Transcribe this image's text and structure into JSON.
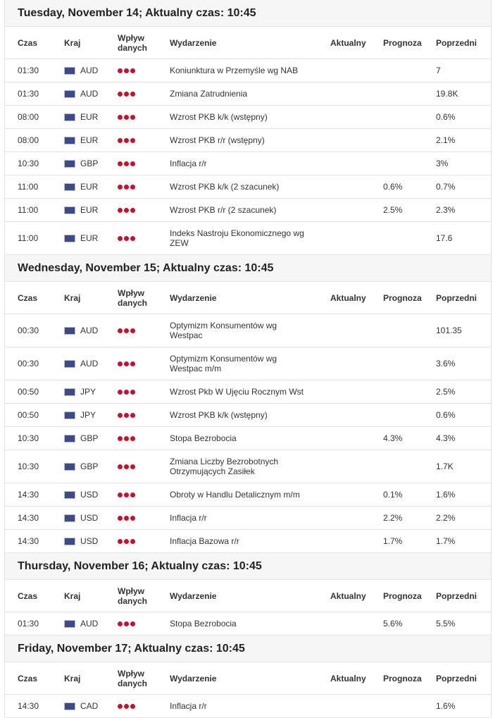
{
  "columns": [
    "Czas",
    "Kraj",
    "Wpływ danych",
    "Wydarzenie",
    "Aktualny",
    "Prognoza",
    "Poprzedni"
  ],
  "days": [
    {
      "title": "Tuesday, November 14; Aktualny czas: 10:45",
      "rows": [
        {
          "time": "01:30",
          "currency": "AUD",
          "event": "Koniunktura w Przemyśle wg NAB",
          "previous": "7"
        },
        {
          "time": "01:30",
          "currency": "AUD",
          "event": "Zmiana Zatrudnienia",
          "previous": "19.8K"
        },
        {
          "time": "08:00",
          "currency": "EUR",
          "event": "Wzrost PKB k/k (wstępny)",
          "previous": "0.6%"
        },
        {
          "time": "08:00",
          "currency": "EUR",
          "event": "Wzrost PKB r/r (wstępny)",
          "previous": "2.1%"
        },
        {
          "time": "10:30",
          "currency": "GBP",
          "event": "Inflacja r/r",
          "previous": "3%"
        },
        {
          "time": "11:00",
          "currency": "EUR",
          "event": "Wzrost PKB k/k (2 szacunek)",
          "forecast": "0.6%",
          "previous": "0.7%"
        },
        {
          "time": "11:00",
          "currency": "EUR",
          "event": "Wzrost PKB r/r (2 szacunek)",
          "forecast": "2.5%",
          "previous": "2.3%"
        },
        {
          "time": "11:00",
          "currency": "EUR",
          "event": "Indeks Nastroju Ekonomicznego wg ZEW",
          "previous": "17.6"
        }
      ]
    },
    {
      "title": "Wednesday, November 15; Aktualny czas: 10:45",
      "rows": [
        {
          "time": "00:30",
          "currency": "AUD",
          "event": "Optymizm Konsumentów wg Westpac",
          "previous": "101.35"
        },
        {
          "time": "00:30",
          "currency": "AUD",
          "event": "Optymizm Konsumentów wg Westpac m/m",
          "previous": "3.6%"
        },
        {
          "time": "00:50",
          "currency": "JPY",
          "event": "Wzrost Pkb W Ujęciu Rocznym Wst",
          "previous": "2.5%"
        },
        {
          "time": "00:50",
          "currency": "JPY",
          "event": "Wzrost PKB k/k (wstępny)",
          "previous": "0.6%"
        },
        {
          "time": "10:30",
          "currency": "GBP",
          "event": "Stopa Bezrobocia",
          "forecast": "4.3%",
          "previous": "4.3%"
        },
        {
          "time": "10:30",
          "currency": "GBP",
          "event": "Zmiana Liczby Bezrobotnych Otrzymujących Zasiłek",
          "previous": "1.7K"
        },
        {
          "time": "14:30",
          "currency": "USD",
          "event": "Obroty w Handlu Detalicznym m/m",
          "forecast": "0.1%",
          "previous": "1.6%"
        },
        {
          "time": "14:30",
          "currency": "USD",
          "event": "Inflacja r/r",
          "forecast": "2.2%",
          "previous": "2.2%"
        },
        {
          "time": "14:30",
          "currency": "USD",
          "event": "Inflacja Bazowa r/r",
          "forecast": "1.7%",
          "previous": "1.7%"
        }
      ]
    },
    {
      "title": "Thursday, November 16; Aktualny czas: 10:45",
      "rows": [
        {
          "time": "01:30",
          "currency": "AUD",
          "event": "Stopa Bezrobocia",
          "forecast": "5.6%",
          "previous": "5.5%"
        }
      ]
    },
    {
      "title": "Friday, November 17; Aktualny czas: 10:45",
      "rows": [
        {
          "time": "14:30",
          "currency": "CAD",
          "event": "Inflacja r/r",
          "previous": "1.6%"
        }
      ]
    }
  ]
}
